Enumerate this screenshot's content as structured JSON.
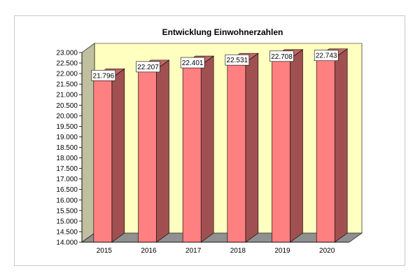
{
  "chart_data": {
    "type": "bar",
    "title": "Entwicklung Einwohnerzahlen",
    "xlabel": "",
    "ylabel": "",
    "categories": [
      "2015",
      "2016",
      "2017",
      "2018",
      "2019",
      "2020"
    ],
    "values": [
      21796,
      22207,
      22401,
      22531,
      22708,
      22743
    ],
    "value_labels": [
      "21.796",
      "22.207",
      "22.401",
      "22.531",
      "22.708",
      "22.743"
    ],
    "ylim": [
      14000,
      23000
    ],
    "y_ticks": [
      14000,
      14500,
      15000,
      15500,
      16000,
      16500,
      17000,
      17500,
      18000,
      18500,
      19000,
      19500,
      20000,
      20500,
      21000,
      21500,
      22000,
      22500,
      23000
    ],
    "y_tick_labels": [
      "14.000",
      "14.500",
      "15.000",
      "15.500",
      "16.000",
      "16.500",
      "17.000",
      "17.500",
      "18.000",
      "18.500",
      "19.000",
      "19.500",
      "20.000",
      "20.500",
      "21.000",
      "21.500",
      "22.000",
      "22.500",
      "23.000"
    ],
    "legend": "none",
    "grid": false,
    "style": "3d",
    "colors": {
      "bar_front": "#ff8080",
      "bar_side": "#a05050",
      "bar_top": "#c06868",
      "back_wall": "#ffffc0",
      "side_wall": "#c0c0a0",
      "floor": "#909090",
      "label_box": "#ffffff"
    }
  }
}
